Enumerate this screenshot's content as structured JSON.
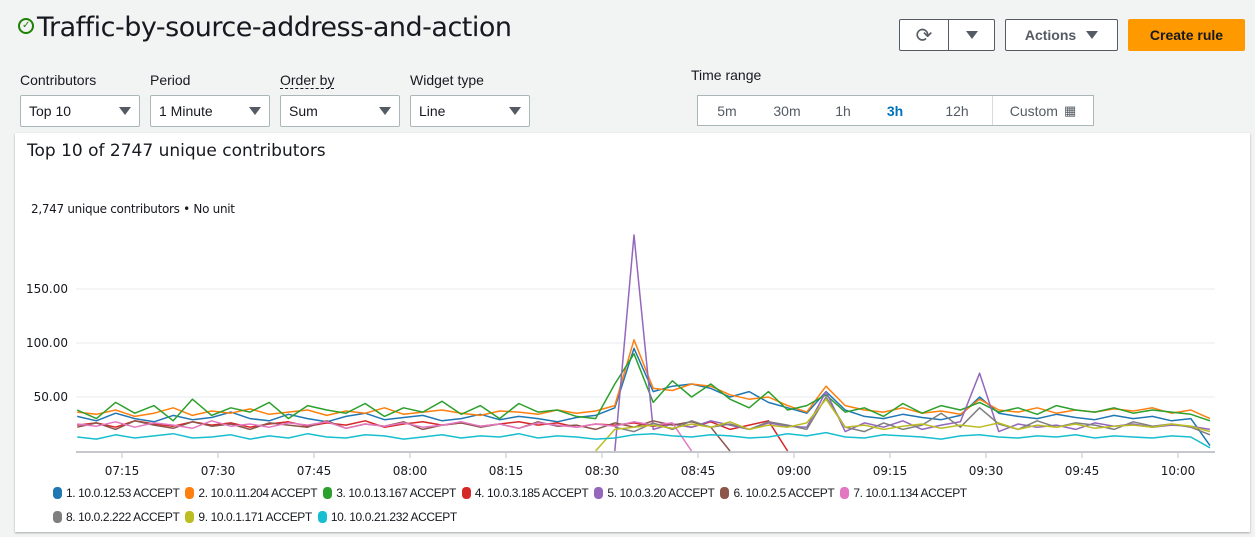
{
  "header": {
    "title": "Traffic-by-source-address-and-action",
    "status_icon": "check-circle-icon",
    "status_color": "#1d8102"
  },
  "toolbar": {
    "refresh_icon": "refresh-icon",
    "actions_label": "Actions",
    "create_rule_label": "Create rule",
    "accent": "#ff9900"
  },
  "filters": [
    {
      "label": "Contributors",
      "value": "Top 10"
    },
    {
      "label": "Period",
      "value": "1 Minute"
    },
    {
      "label": "Order by",
      "value": "Sum"
    },
    {
      "label": "Widget type",
      "value": "Line"
    }
  ],
  "time_range": {
    "label": "Time range",
    "options": [
      "5m",
      "30m",
      "1h",
      "3h",
      "12h"
    ],
    "selected": "3h",
    "custom_label": "Custom",
    "accent": "#0073bb"
  },
  "panel": {
    "title": "Top 10 of 2747 unique contributors",
    "unit_label": "2,747 unique contributors • No unit"
  },
  "chart_data": {
    "type": "line",
    "x_start": "07:08",
    "x_step_minutes": 3,
    "x_ticks": [
      "07:15",
      "07:30",
      "07:45",
      "08:00",
      "08:15",
      "08:30",
      "08:45",
      "09:00",
      "09:15",
      "09:30",
      "09:45",
      "10:00"
    ],
    "y_ticks": [
      "50.00",
      "100.00",
      "150.00"
    ],
    "ylim": [
      0,
      200
    ],
    "grid": true,
    "legend": "bottom",
    "series": [
      {
        "name": "1. 10.0.12.53 ACCEPT",
        "color": "#1f77b4",
        "values": [
          32,
          28,
          35,
          30,
          27,
          33,
          29,
          31,
          36,
          30,
          28,
          34,
          30,
          27,
          32,
          35,
          29,
          31,
          33,
          28,
          30,
          34,
          29,
          32,
          30,
          27,
          31,
          33,
          40,
          95,
          55,
          60,
          62,
          58,
          50,
          55,
          45,
          40,
          35,
          55,
          38,
          32,
          30,
          34,
          31,
          29,
          33,
          50,
          35,
          32,
          30,
          34,
          31,
          29,
          33,
          30,
          32,
          28,
          30,
          5
        ]
      },
      {
        "name": "2. 10.0.11.204 ACCEPT",
        "color": "#ff7f0e",
        "values": [
          36,
          34,
          38,
          32,
          35,
          40,
          33,
          37,
          35,
          39,
          34,
          36,
          38,
          33,
          37,
          35,
          40,
          34,
          36,
          38,
          35,
          33,
          37,
          36,
          34,
          38,
          35,
          37,
          42,
          103,
          58,
          56,
          62,
          60,
          52,
          48,
          50,
          42,
          36,
          60,
          42,
          38,
          36,
          40,
          35,
          37,
          34,
          48,
          38,
          36,
          40,
          35,
          38,
          36,
          39,
          37,
          40,
          35,
          38,
          30
        ]
      },
      {
        "name": "3. 10.0.13.167 ACCEPT",
        "color": "#2ca02c",
        "values": [
          38,
          30,
          45,
          35,
          42,
          28,
          48,
          33,
          40,
          36,
          45,
          30,
          42,
          38,
          35,
          44,
          32,
          40,
          36,
          46,
          34,
          42,
          30,
          44,
          36,
          38,
          32,
          30,
          62,
          90,
          45,
          65,
          50,
          62,
          48,
          40,
          55,
          38,
          42,
          52,
          36,
          40,
          32,
          44,
          35,
          42,
          38,
          45,
          36,
          40,
          34,
          42,
          38,
          36,
          40,
          35,
          38,
          36,
          34,
          28
        ]
      },
      {
        "name": "4. 10.0.3.185 ACCEPT",
        "color": "#d62728",
        "values": [
          24,
          26,
          22,
          28,
          25,
          23,
          27,
          24,
          26,
          22,
          25,
          27,
          23,
          26,
          24,
          28,
          22,
          25,
          27,
          24,
          26,
          23,
          25,
          27,
          24,
          26,
          22,
          25,
          24,
          26,
          23,
          25,
          22,
          27,
          20,
          24,
          28,
          0,
          null,
          null,
          null,
          null,
          null,
          null,
          null,
          null,
          null,
          null,
          null,
          null,
          null,
          null,
          null,
          null,
          null,
          null,
          null,
          null,
          null,
          null
        ]
      },
      {
        "name": "5. 10.0.3.20 ACCEPT",
        "color": "#9467bd",
        "values": [
          null,
          null,
          null,
          null,
          null,
          null,
          null,
          null,
          null,
          null,
          null,
          null,
          null,
          null,
          null,
          null,
          null,
          null,
          null,
          null,
          null,
          null,
          null,
          null,
          null,
          null,
          null,
          null,
          0,
          200,
          20,
          25,
          22,
          28,
          24,
          20,
          26,
          23,
          22,
          55,
          18,
          26,
          22,
          28,
          20,
          24,
          27,
          72,
          18,
          25,
          22,
          24,
          20,
          26,
          23,
          25,
          22,
          24,
          23,
          20
        ]
      },
      {
        "name": "6. 10.0.2.5 ACCEPT",
        "color": "#8c564b",
        "values": [
          22,
          26,
          20,
          28,
          24,
          21,
          27,
          23,
          25,
          20,
          26,
          24,
          22,
          28,
          21,
          25,
          23,
          27,
          20,
          24,
          26,
          22,
          25,
          21,
          27,
          23,
          24,
          20,
          26,
          22,
          28,
          24,
          27,
          22,
          0,
          null,
          null,
          null,
          null,
          null,
          null,
          null,
          null,
          null,
          null,
          null,
          null,
          null,
          null,
          null,
          null,
          null,
          null,
          null,
          null,
          null,
          null,
          null,
          null,
          null
        ]
      },
      {
        "name": "7. 10.0.1.134 ACCEPT",
        "color": "#e377c2",
        "values": [
          25,
          23,
          27,
          22,
          26,
          24,
          21,
          28,
          23,
          25,
          22,
          26,
          24,
          27,
          21,
          25,
          23,
          26,
          22,
          24,
          27,
          23,
          25,
          21,
          26,
          24,
          22,
          25,
          23,
          27,
          24,
          26,
          0,
          null,
          null,
          null,
          null,
          null,
          null,
          null,
          null,
          null,
          null,
          null,
          null,
          null,
          null,
          null,
          null,
          null,
          null,
          null,
          null,
          null,
          null,
          null,
          null,
          null,
          null,
          null
        ]
      },
      {
        "name": "8. 10.0.2.222 ACCEPT",
        "color": "#7f7f7f",
        "values": [
          null,
          null,
          null,
          null,
          null,
          null,
          null,
          null,
          null,
          null,
          null,
          null,
          null,
          null,
          null,
          null,
          null,
          null,
          null,
          null,
          null,
          null,
          null,
          null,
          null,
          null,
          null,
          null,
          22,
          18,
          26,
          20,
          28,
          22,
          25,
          20,
          27,
          24,
          20,
          50,
          22,
          18,
          26,
          20,
          24,
          35,
          22,
          40,
          25,
          20,
          28,
          22,
          26,
          24,
          20,
          27,
          23,
          25,
          22,
          15
        ]
      },
      {
        "name": "9. 10.0.1.171 ACCEPT",
        "color": "#bcbd22",
        "values": [
          null,
          null,
          null,
          null,
          null,
          null,
          null,
          null,
          null,
          null,
          null,
          null,
          null,
          null,
          null,
          null,
          null,
          null,
          null,
          null,
          null,
          null,
          null,
          null,
          null,
          null,
          null,
          0,
          20,
          22,
          24,
          21,
          25,
          22,
          27,
          20,
          24,
          22,
          26,
          48,
          22,
          24,
          20,
          23,
          25,
          21,
          24,
          22,
          26,
          20,
          24,
          22,
          25,
          21,
          23,
          24,
          22,
          25,
          23,
          18
        ]
      },
      {
        "name": "10. 10.0.21.232 ACCEPT",
        "color": "#17becf",
        "values": [
          13,
          11,
          15,
          12,
          14,
          16,
          12,
          13,
          15,
          11,
          14,
          12,
          16,
          13,
          12,
          15,
          14,
          11,
          13,
          15,
          12,
          14,
          13,
          16,
          12,
          14,
          13,
          11,
          12,
          15,
          16,
          14,
          13,
          15,
          14,
          12,
          13,
          16,
          14,
          17,
          13,
          12,
          15,
          14,
          13,
          11,
          14,
          15,
          13,
          12,
          14,
          13,
          15,
          12,
          14,
          13,
          12,
          14,
          13,
          3
        ]
      }
    ]
  }
}
